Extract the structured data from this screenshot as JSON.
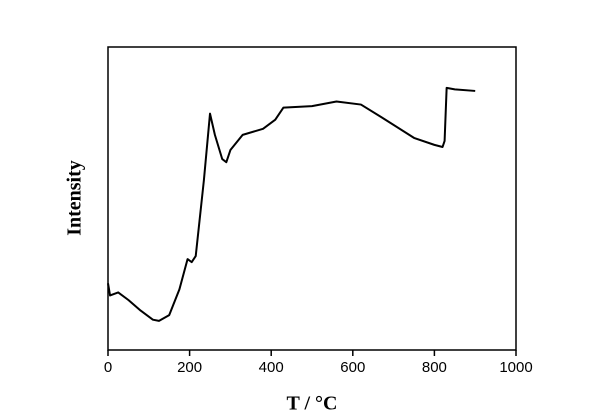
{
  "chart_data": {
    "type": "line",
    "xlabel": "T / °C",
    "ylabel": "Intensity",
    "x": [
      0,
      5,
      25,
      50,
      80,
      110,
      125,
      150,
      175,
      195,
      205,
      215,
      235,
      250,
      262,
      280,
      290,
      300,
      330,
      380,
      410,
      430,
      500,
      560,
      620,
      680,
      750,
      800,
      820,
      825,
      830,
      850,
      900
    ],
    "series": [
      {
        "name": "Intensity",
        "color": "#000000",
        "values": [
          22,
          18,
          19,
          16.5,
          13,
          10,
          9.6,
          11.5,
          20,
          30,
          29,
          31,
          56,
          78,
          71,
          63,
          62,
          66,
          71,
          73,
          76,
          80,
          80.5,
          82,
          81,
          76,
          70,
          67.7,
          67,
          69,
          86.5,
          86,
          85.5
        ]
      }
    ],
    "xlim": [
      0,
      1000
    ],
    "xticks": [
      0,
      200,
      400,
      600,
      800,
      1000
    ],
    "ylim": [
      0,
      100
    ]
  }
}
